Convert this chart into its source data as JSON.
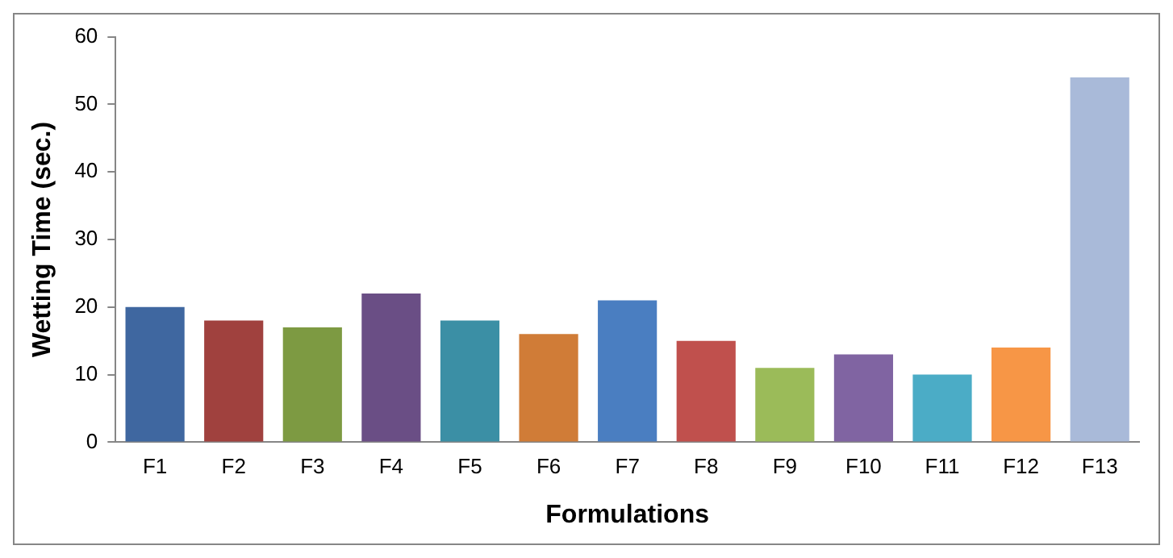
{
  "chart_data": {
    "type": "bar",
    "xlabel": "Formulations",
    "ylabel": "Wetting Time (sec.)",
    "categories": [
      "F1",
      "F2",
      "F3",
      "F4",
      "F5",
      "F6",
      "F7",
      "F8",
      "F9",
      "F10",
      "F11",
      "F12",
      "F13"
    ],
    "values": [
      20,
      18,
      17,
      22,
      18,
      16,
      21,
      15,
      11,
      13,
      10,
      14,
      54
    ],
    "colors": [
      "#3f67a0",
      "#a0413e",
      "#7d9a42",
      "#6a4e85",
      "#3b8fa5",
      "#d07c37",
      "#4a7ec1",
      "#c0504d",
      "#9bbb59",
      "#8064a2",
      "#4bacc6",
      "#f79646",
      "#a9bad9"
    ],
    "ylim": [
      0,
      60
    ],
    "yticks": [
      0,
      10,
      20,
      30,
      40,
      50,
      60
    ],
    "grid": false,
    "legend": false
  }
}
